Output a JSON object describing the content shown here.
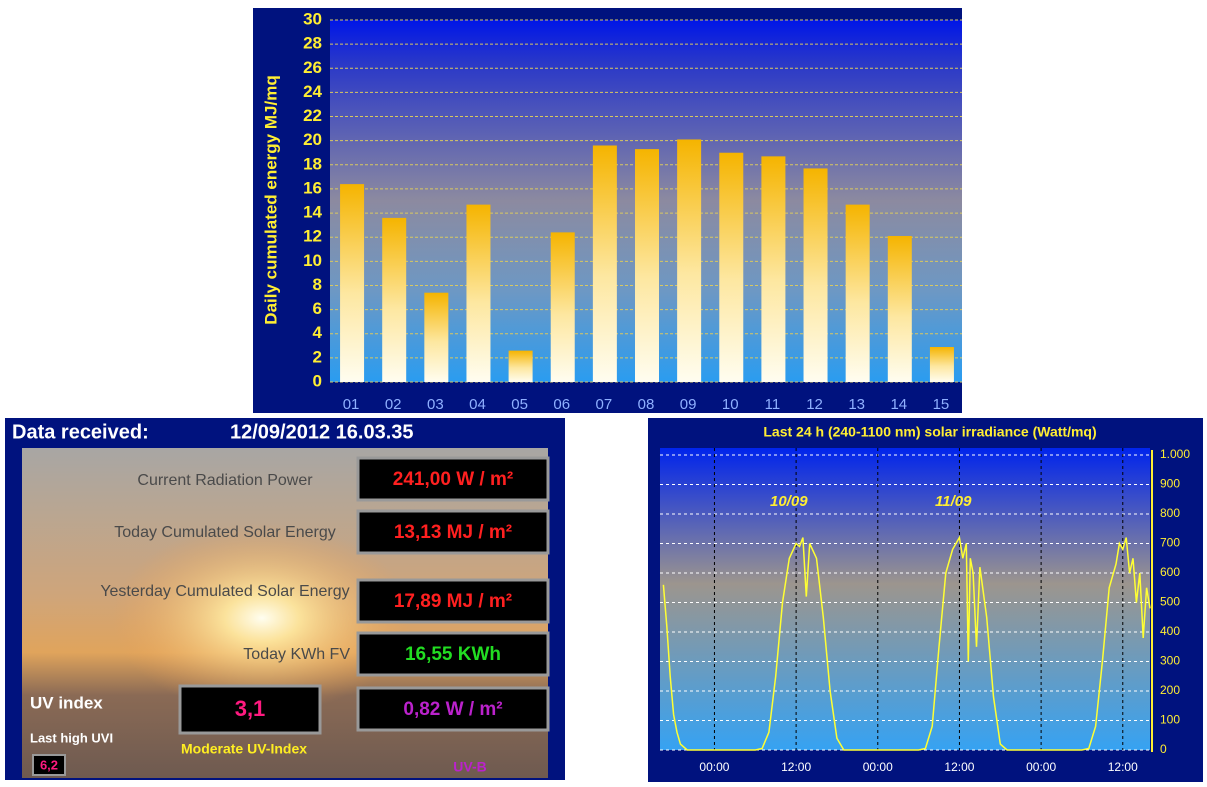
{
  "chart_data": [
    {
      "type": "bar",
      "ylabel": "Daily cumulated  energy  MJ/mq",
      "categories": [
        "01",
        "02",
        "03",
        "04",
        "05",
        "06",
        "07",
        "08",
        "09",
        "10",
        "11",
        "12",
        "13",
        "14",
        "15"
      ],
      "values": [
        16.4,
        13.6,
        7.4,
        14.7,
        2.6,
        12.4,
        19.6,
        19.3,
        20.1,
        19.0,
        18.7,
        17.7,
        14.7,
        12.1,
        2.9
      ],
      "color": "#f5b400",
      "ylim": [
        0,
        30
      ],
      "yticks": [
        0,
        2,
        4,
        6,
        8,
        10,
        12,
        14,
        16,
        18,
        20,
        22,
        24,
        26,
        28,
        30
      ],
      "grid": true
    },
    {
      "type": "line",
      "title": "Last 24 h  (240-1100 nm) solar irradiance (Watt/mq)",
      "x": [
        -7.5,
        -7,
        -6.5,
        -6,
        -5.5,
        -5,
        -4,
        0,
        6,
        7,
        8,
        9,
        10,
        11,
        12,
        12.5,
        13,
        13.5,
        14,
        15,
        16,
        17,
        18,
        19,
        24,
        30,
        31,
        32,
        33,
        34,
        35,
        35.5,
        36,
        36.5,
        37,
        37.3,
        37.6,
        38,
        38.5,
        39,
        40,
        41,
        42,
        43,
        48,
        54,
        55,
        56,
        57,
        58,
        59,
        59.5,
        60,
        60.5,
        61,
        61.5,
        62,
        62.5,
        63,
        63.5,
        64
      ],
      "values": [
        560,
        420,
        250,
        120,
        60,
        20,
        0,
        0,
        0,
        5,
        60,
        250,
        500,
        650,
        700,
        690,
        720,
        520,
        700,
        650,
        450,
        200,
        40,
        0,
        0,
        0,
        5,
        80,
        350,
        600,
        680,
        700,
        720,
        650,
        700,
        300,
        650,
        600,
        350,
        620,
        450,
        180,
        20,
        0,
        0,
        0,
        5,
        80,
        300,
        550,
        630,
        700,
        680,
        720,
        600,
        650,
        500,
        600,
        380,
        550,
        480
      ],
      "color": "#ffff33",
      "xlim": [
        -8,
        64
      ],
      "xticks": [
        {
          "value": 0,
          "label": "00:00"
        },
        {
          "value": 12,
          "label": "12:00"
        },
        {
          "value": 24,
          "label": "00:00"
        },
        {
          "value": 36,
          "label": "12:00"
        },
        {
          "value": 48,
          "label": "00:00"
        },
        {
          "value": 60,
          "label": "12:00"
        }
      ],
      "ylim": [
        0,
        1000
      ],
      "yticks": [
        0,
        100,
        200,
        300,
        400,
        500,
        600,
        700,
        800,
        900,
        {
          "value": 1000,
          "label": "1.000"
        }
      ],
      "annotations": [
        "10/09",
        "11/09"
      ],
      "grid": true
    }
  ],
  "panel": {
    "title_label": "Data received:",
    "timestamp": "12/09/2012 16.03.35",
    "rows": [
      {
        "label": "Current Radiation Power",
        "value": "241,00 W / m²"
      },
      {
        "label": "Today Cumulated Solar Energy",
        "value": "13,13  MJ / m²"
      },
      {
        "label": "Yesterday Cumulated Solar Energy",
        "value": "17,89  MJ / m²"
      },
      {
        "label": "Today KWh FV",
        "value": "16,55  KWh"
      }
    ],
    "uv_label": "UV index",
    "uv_value": "3,1",
    "uvb_value": "0,82 W / m²",
    "last_high_label": "Last high UVI",
    "last_high_value": "6,2",
    "uv_category": "Moderate  UV-Index",
    "uvb_label": "UV-B"
  }
}
